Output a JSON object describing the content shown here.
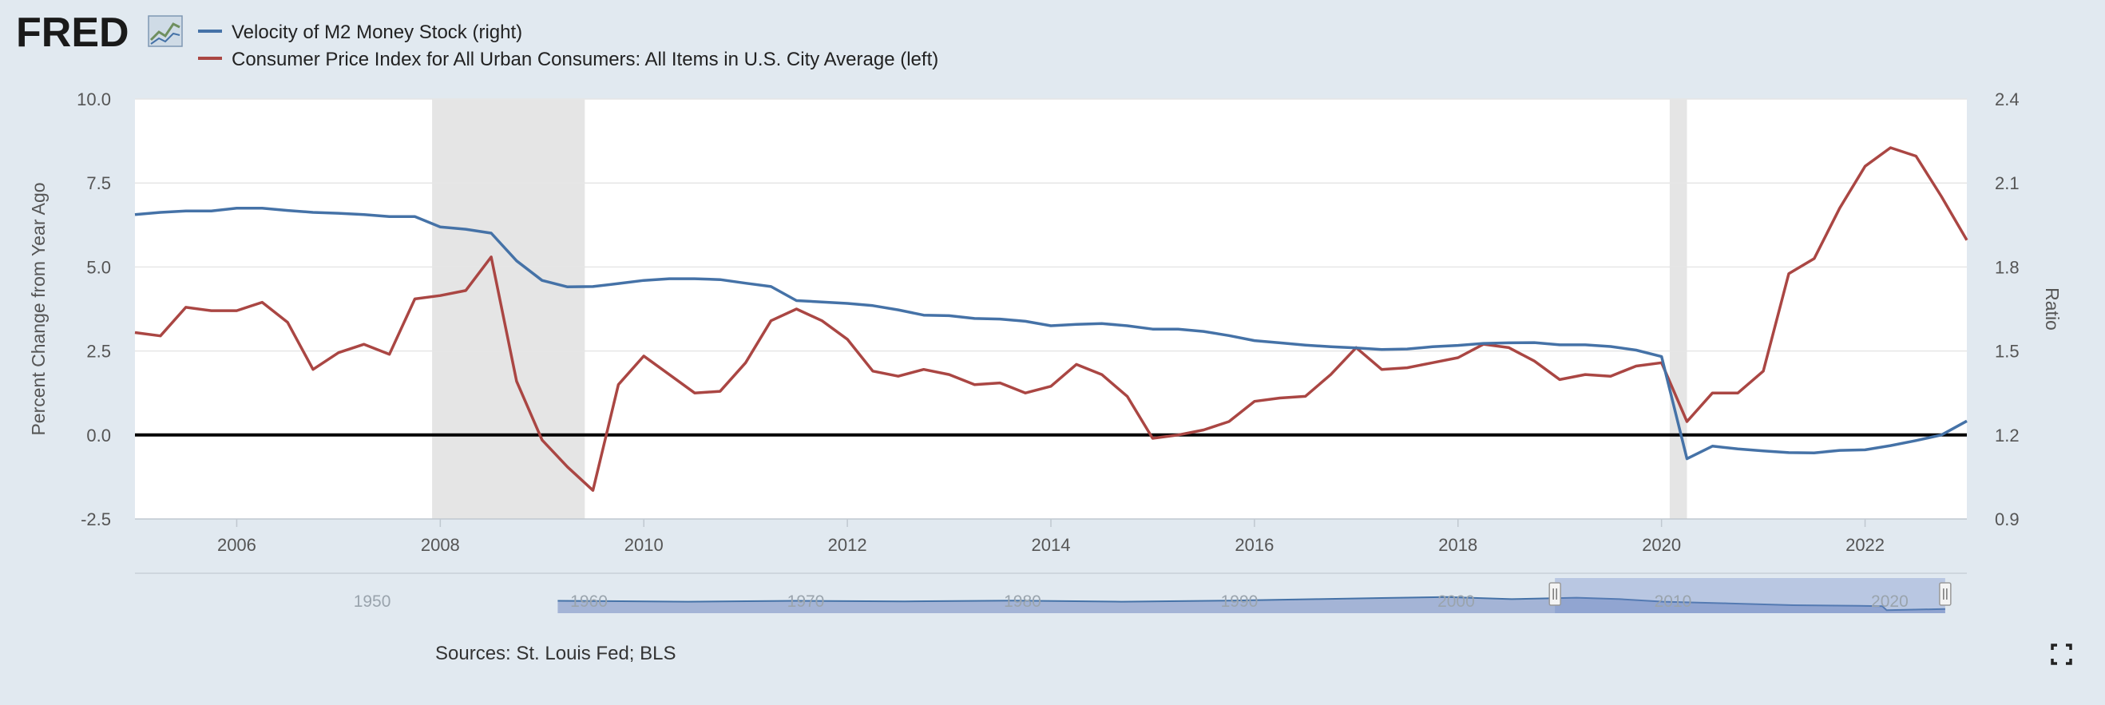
{
  "logo": {
    "text": "FRED",
    "icon": "chart-line-icon"
  },
  "legend": [
    {
      "label": "Velocity of M2 Money Stock (right)",
      "color": "#4572a7"
    },
    {
      "label": "Consumer Price Index for All Urban Consumers: All Items in U.S. City Average (left)",
      "color": "#aa4643"
    }
  ],
  "footer": {
    "sources": "Sources: St. Louis Fed; BLS",
    "fullscreen_icon": "fullscreen-icon"
  },
  "colors": {
    "background": "#e1e9f0",
    "plot_bg": "#ffffff",
    "recession": "#e5e5e5",
    "zero_line": "#000000",
    "navigator": "#a4b4d6"
  },
  "chart_data": {
    "type": "line",
    "title": "",
    "xlabel": "",
    "ylabel_left": "Percent Change from Year Ago",
    "ylabel_right": "Ratio",
    "xlim": [
      2005.0,
      2023.0
    ],
    "ylim_left": [
      -2.5,
      10.0
    ],
    "ylim_right": [
      0.9,
      2.4
    ],
    "x_ticks": [
      "2006",
      "2008",
      "2010",
      "2012",
      "2014",
      "2016",
      "2018",
      "2020",
      "2022"
    ],
    "y_ticks_left": [
      "10.0",
      "7.5",
      "5.0",
      "2.5",
      "0.0",
      "-2.5"
    ],
    "y_ticks_right": [
      "2.4",
      "2.1",
      "1.8",
      "1.5",
      "1.2",
      "0.9"
    ],
    "recessions": [
      [
        2007.92,
        2009.42
      ],
      [
        2020.08,
        2020.25
      ]
    ],
    "series": [
      {
        "name": "Consumer Price Index for All Urban Consumers: All Items in U.S. City Average (left)",
        "axis": "left",
        "x": [
          2005.0,
          2005.25,
          2005.5,
          2005.75,
          2006.0,
          2006.25,
          2006.5,
          2006.75,
          2007.0,
          2007.25,
          2007.5,
          2007.75,
          2008.0,
          2008.25,
          2008.5,
          2008.75,
          2009.0,
          2009.25,
          2009.5,
          2009.75,
          2010.0,
          2010.25,
          2010.5,
          2010.75,
          2011.0,
          2011.25,
          2011.5,
          2011.75,
          2012.0,
          2012.25,
          2012.5,
          2012.75,
          2013.0,
          2013.25,
          2013.5,
          2013.75,
          2014.0,
          2014.25,
          2014.5,
          2014.75,
          2015.0,
          2015.25,
          2015.5,
          2015.75,
          2016.0,
          2016.25,
          2016.5,
          2016.75,
          2017.0,
          2017.25,
          2017.5,
          2017.75,
          2018.0,
          2018.25,
          2018.5,
          2018.75,
          2019.0,
          2019.25,
          2019.5,
          2019.75,
          2020.0,
          2020.25,
          2020.5,
          2020.75,
          2021.0,
          2021.25,
          2021.5,
          2021.75,
          2022.0,
          2022.25,
          2022.5,
          2022.75,
          2023.0
        ],
        "values": [
          3.05,
          2.95,
          3.8,
          3.7,
          3.7,
          3.95,
          3.35,
          1.95,
          2.45,
          2.7,
          2.4,
          4.05,
          4.15,
          4.3,
          5.3,
          1.6,
          -0.15,
          -0.95,
          -1.65,
          1.5,
          2.35,
          1.8,
          1.25,
          1.3,
          2.15,
          3.4,
          3.75,
          3.4,
          2.85,
          1.9,
          1.75,
          1.95,
          1.8,
          1.5,
          1.55,
          1.25,
          1.45,
          2.1,
          1.8,
          1.15,
          -0.1,
          0.0,
          0.15,
          0.4,
          1.0,
          1.1,
          1.15,
          1.8,
          2.6,
          1.95,
          2.0,
          2.15,
          2.3,
          2.7,
          2.6,
          2.2,
          1.65,
          1.8,
          1.75,
          2.05,
          2.15,
          0.4,
          1.25,
          1.25,
          1.9,
          4.8,
          5.25,
          6.75,
          8.0,
          8.55,
          8.3,
          7.1,
          5.8
        ],
        "color": "#aa4643"
      },
      {
        "name": "Velocity of M2 Money Stock (right)",
        "axis": "right",
        "x": [
          2005.0,
          2005.25,
          2005.5,
          2005.75,
          2006.0,
          2006.25,
          2006.5,
          2006.75,
          2007.0,
          2007.25,
          2007.5,
          2007.75,
          2008.0,
          2008.25,
          2008.5,
          2008.75,
          2009.0,
          2009.25,
          2009.5,
          2009.75,
          2010.0,
          2010.25,
          2010.5,
          2010.75,
          2011.0,
          2011.25,
          2011.5,
          2011.75,
          2012.0,
          2012.25,
          2012.5,
          2012.75,
          2013.0,
          2013.25,
          2013.5,
          2013.75,
          2014.0,
          2014.25,
          2014.5,
          2014.75,
          2015.0,
          2015.25,
          2015.5,
          2015.75,
          2016.0,
          2016.25,
          2016.5,
          2016.75,
          2017.0,
          2017.25,
          2017.5,
          2017.75,
          2018.0,
          2018.25,
          2018.5,
          2018.75,
          2019.0,
          2019.25,
          2019.5,
          2019.75,
          2020.0,
          2020.25,
          2020.5,
          2020.75,
          2021.0,
          2021.25,
          2021.5,
          2021.75,
          2022.0,
          2022.25,
          2022.5,
          2022.75,
          2023.0
        ],
        "values": [
          1.987,
          1.995,
          2.0,
          2.0,
          2.01,
          2.01,
          2.002,
          1.995,
          1.992,
          1.987,
          1.98,
          1.98,
          1.943,
          1.935,
          1.921,
          1.822,
          1.752,
          1.729,
          1.73,
          1.741,
          1.752,
          1.758,
          1.758,
          1.755,
          1.742,
          1.73,
          1.68,
          1.675,
          1.67,
          1.662,
          1.647,
          1.628,
          1.626,
          1.616,
          1.614,
          1.606,
          1.59,
          1.595,
          1.598,
          1.59,
          1.578,
          1.578,
          1.57,
          1.555,
          1.537,
          1.529,
          1.521,
          1.515,
          1.511,
          1.505,
          1.507,
          1.515,
          1.52,
          1.527,
          1.529,
          1.53,
          1.522,
          1.522,
          1.516,
          1.503,
          1.48,
          1.115,
          1.16,
          1.15,
          1.143,
          1.137,
          1.136,
          1.145,
          1.147,
          1.162,
          1.18,
          1.2,
          1.25
        ],
        "color": "#4572a7"
      }
    ],
    "navigator": {
      "tick_labels": [
        "1950",
        "1960",
        "1970",
        "1980",
        "1990",
        "2000",
        "2010",
        "2020"
      ],
      "range": [
        1959,
        2023
      ],
      "selected": [
        2005,
        2023
      ]
    }
  }
}
